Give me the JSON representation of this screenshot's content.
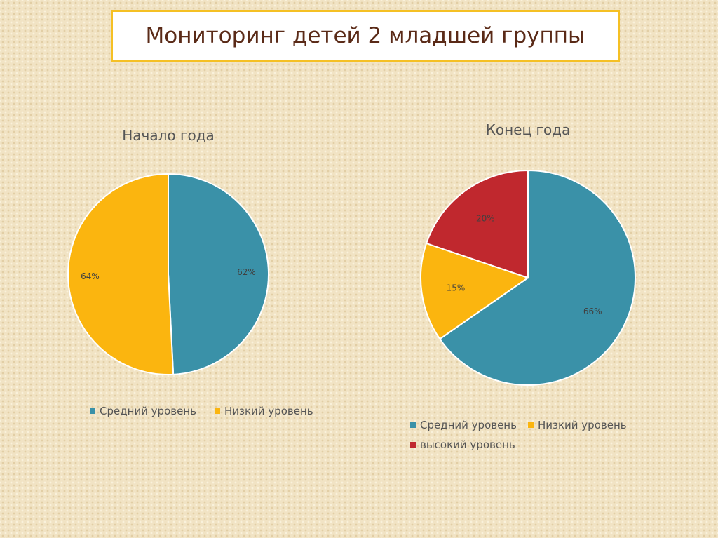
{
  "page_title": "Мониторинг детей 2 младшей группы",
  "colors": {
    "medium": "#3a91a8",
    "low": "#fbb50f",
    "high": "#c0282e",
    "title_border": "#f5c024",
    "title_text": "#5a2a17"
  },
  "chart_data": [
    {
      "type": "pie",
      "title": "Начало года",
      "slices": [
        {
          "label": "Средний уровень",
          "value": 62,
          "value_label": "62%",
          "color": "#3a91a8"
        },
        {
          "label": "Низкий уровень",
          "value": 64,
          "value_label": "64%",
          "color": "#fbb50f"
        }
      ],
      "legend": [
        "Средний уровень",
        "Низкий уровень"
      ],
      "legend_position": "bottom"
    },
    {
      "type": "pie",
      "title": "Конец года",
      "slices": [
        {
          "label": "Средний уровень",
          "value": 66,
          "value_label": "66%",
          "color": "#3a91a8"
        },
        {
          "label": "Низкий уровень",
          "value": 15,
          "value_label": "15%",
          "color": "#fbb50f"
        },
        {
          "label": "высокий уровень",
          "value": 20,
          "value_label": "20%",
          "color": "#c0282e"
        }
      ],
      "legend": [
        "Средний уровень",
        "Низкий уровень",
        "высокий уровень"
      ],
      "legend_position": "bottom"
    }
  ]
}
